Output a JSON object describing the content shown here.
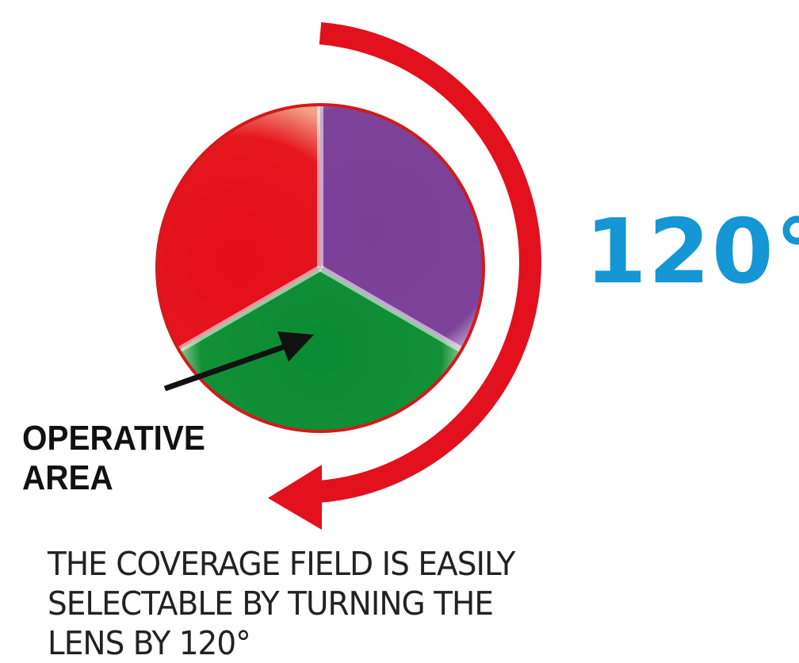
{
  "rotation": {
    "angle_label": "120°",
    "arrow_color": "#e3101d"
  },
  "lens": {
    "sectors": [
      {
        "name": "red-sector",
        "color": "#e30e1c"
      },
      {
        "name": "purple-sector",
        "color": "#7b3f98"
      },
      {
        "name": "green-sector",
        "color": "#0f8a3a"
      }
    ],
    "rim_color": "#d21a1a"
  },
  "operative_label": {
    "line1": "OPERATIVE",
    "line2": "AREA"
  },
  "caption": {
    "line1": "THE COVERAGE FIELD IS EASILY",
    "line2": "SELECTABLE BY TURNING THE",
    "line3": "LENS BY 120°"
  },
  "colors": {
    "label_blue": "#1497d4",
    "text_dark": "#111111"
  }
}
